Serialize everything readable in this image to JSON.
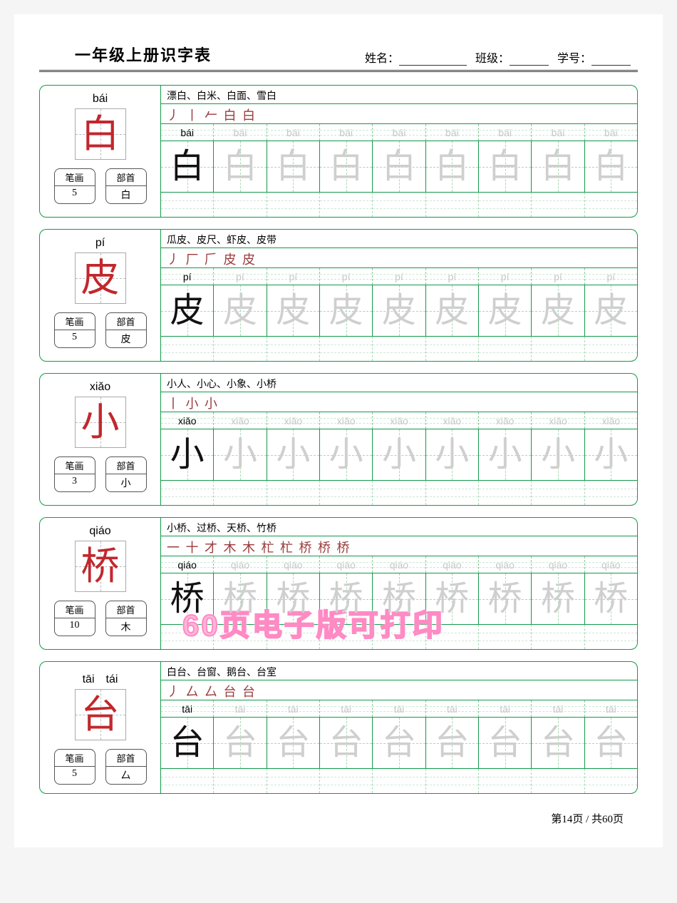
{
  "title": "一年级上册识字表",
  "header": {
    "name_label": "姓名：",
    "class_label": "班级：",
    "id_label": "学号："
  },
  "tag_labels": {
    "strokes": "笔画",
    "radical": "部首"
  },
  "entries": [
    {
      "pinyin": "bái",
      "char": "白",
      "stroke_count": "5",
      "radical": "白",
      "words": "漂白、白米、白面、雪白",
      "stroke_order": "丿 丨 𠂉 白 白",
      "trace_pinyin": "bái"
    },
    {
      "pinyin": "pí",
      "char": "皮",
      "stroke_count": "5",
      "radical": "皮",
      "words": "瓜皮、皮尺、虾皮、皮带",
      "stroke_order": "丿 厂 𠂆 皮 皮",
      "trace_pinyin": "pí"
    },
    {
      "pinyin": "xiǎo",
      "char": "小",
      "stroke_count": "3",
      "radical": "小",
      "words": "小人、小心、小象、小桥",
      "stroke_order": "丨 小 小",
      "trace_pinyin": "xiǎo"
    },
    {
      "pinyin": "qiáo",
      "char": "桥",
      "stroke_count": "10",
      "radical": "木",
      "words": "小桥、过桥、天桥、竹桥",
      "stroke_order": "一 十 才 木 木 杧 杧 桥 桥 桥",
      "trace_pinyin": "qiáo"
    },
    {
      "pinyin": "tāi　tái",
      "char": "台",
      "stroke_count": "5",
      "radical": "厶",
      "words": "白台、台窗、鹅台、台室",
      "stroke_order": "丿 厶 厶 台 台",
      "trace_pinyin": "tāi"
    }
  ],
  "watermark": "60页电子版可打印",
  "footer": "第14页 / 共60页",
  "colors": {
    "border_green": "#129a4a",
    "char_red": "#c1272d",
    "ghost_gray": "#cfcfcf",
    "stroke_red": "#9a3b3b"
  },
  "layout": {
    "practice_cols": 9
  }
}
